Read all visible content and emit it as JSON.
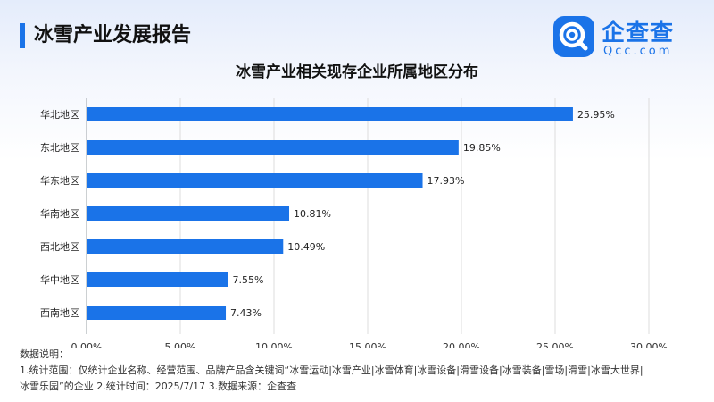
{
  "header": {
    "title": "冰雪产业发展报告",
    "logo": {
      "name": "企查查",
      "domain": "Qcc.com",
      "icon": "qcc-magnifier-icon",
      "color": "#1a73e8"
    }
  },
  "chart_data": {
    "type": "bar",
    "orientation": "horizontal",
    "title": "冰雪产业相关现存企业所属地区分布",
    "categories": [
      "华北地区",
      "东北地区",
      "华东地区",
      "华南地区",
      "西北地区",
      "华中地区",
      "西南地区"
    ],
    "values": [
      25.95,
      19.85,
      17.93,
      10.81,
      10.49,
      7.55,
      7.43
    ],
    "value_labels": [
      "25.95%",
      "19.85%",
      "17.93%",
      "10.81%",
      "10.49%",
      "7.55%",
      "7.43%"
    ],
    "x_ticks": [
      "0.00%",
      "5.00%",
      "10.00%",
      "15.00%",
      "20.00%",
      "25.00%",
      "30.00%"
    ],
    "xlim": [
      0,
      30
    ],
    "grid": "vertical",
    "bar_color": "#1a73e8"
  },
  "notes": {
    "heading": "数据说明：",
    "line1": "1.统计范围：仅统计企业名称、经营范围、品牌产品含关键词“冰雪运动|冰雪产业|冰雪体育|冰雪设备|滑雪设备|冰雪装备|雪场|滑雪|冰雪大世界|",
    "line2": "冰雪乐园”的企业 2.统计时间：2025/7/17 3.数据来源：企查查"
  }
}
